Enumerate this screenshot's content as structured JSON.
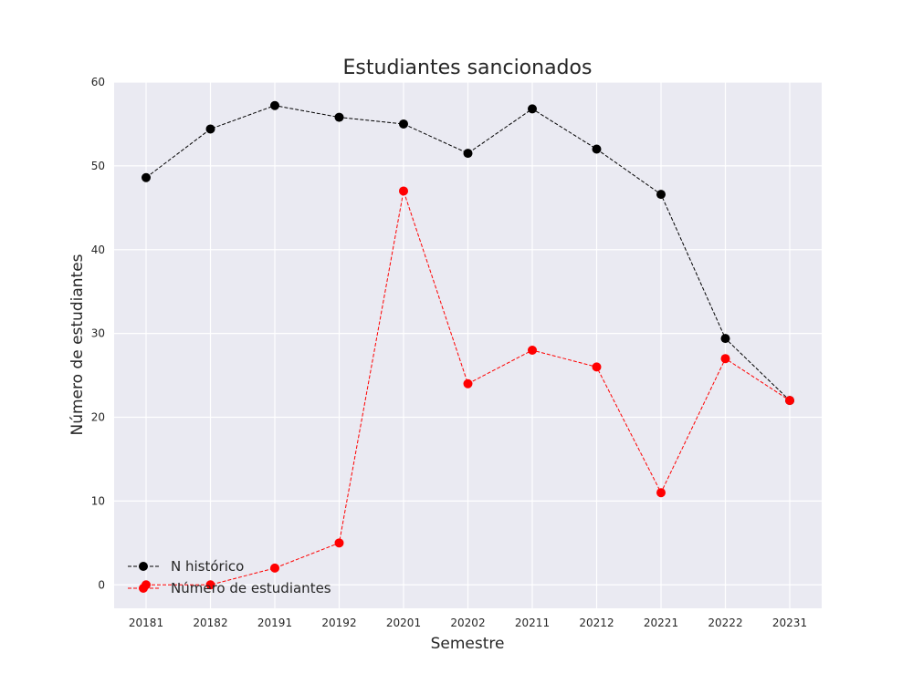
{
  "chart_data": {
    "type": "line",
    "title": "Estudiantes sancionados",
    "xlabel": "Semestre",
    "ylabel": "Número de estudiantes",
    "categories": [
      "20181",
      "20182",
      "20191",
      "20192",
      "20201",
      "20202",
      "20211",
      "20212",
      "20221",
      "20222",
      "20231"
    ],
    "ylim": [
      -2.8,
      60
    ],
    "yticks": [
      0,
      10,
      20,
      30,
      40,
      50,
      60
    ],
    "grid": true,
    "legend_position": "lower-left",
    "series": [
      {
        "name": "N histórico",
        "color": "#000000",
        "line_style": "dashed",
        "marker": "circle",
        "values": [
          48.6,
          54.4,
          57.2,
          55.8,
          55.0,
          51.5,
          56.8,
          52.0,
          46.6,
          29.4,
          22.0
        ]
      },
      {
        "name": "Número de estudiantes",
        "color": "#ff0000",
        "line_style": "dashed",
        "marker": "circle",
        "values": [
          0,
          0,
          2,
          5,
          47,
          24,
          28,
          26,
          11,
          27,
          22
        ]
      }
    ]
  }
}
